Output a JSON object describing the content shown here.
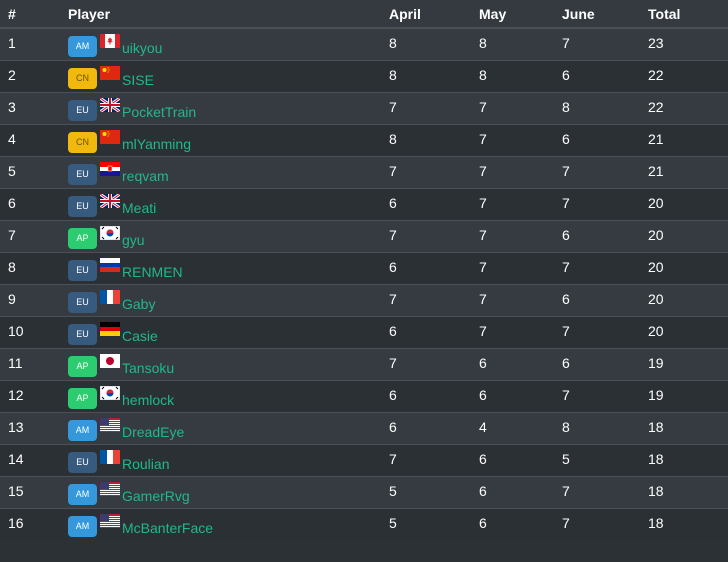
{
  "headers": [
    "#",
    "Player",
    "April",
    "May",
    "June",
    "Total"
  ],
  "region_colors": {
    "AM": "#3498db",
    "CN": "#f1b80d",
    "EU": "#375a7f",
    "AP": "#2ecc71"
  },
  "rows": [
    {
      "rank": "1",
      "region": "AM",
      "flag": "CA",
      "player": "uikyou",
      "april": "8",
      "may": "8",
      "june": "7",
      "total": "23"
    },
    {
      "rank": "2",
      "region": "CN",
      "flag": "CN",
      "player": "SISE",
      "april": "8",
      "may": "8",
      "june": "6",
      "total": "22"
    },
    {
      "rank": "3",
      "region": "EU",
      "flag": "GB",
      "player": "PocketTrain",
      "april": "7",
      "may": "7",
      "june": "8",
      "total": "22"
    },
    {
      "rank": "4",
      "region": "CN",
      "flag": "CN",
      "player": "mlYanming",
      "april": "8",
      "may": "7",
      "june": "6",
      "total": "21"
    },
    {
      "rank": "5",
      "region": "EU",
      "flag": "HR",
      "player": "reqvam",
      "april": "7",
      "may": "7",
      "june": "7",
      "total": "21"
    },
    {
      "rank": "6",
      "region": "EU",
      "flag": "GB",
      "player": "Meati",
      "april": "6",
      "may": "7",
      "june": "7",
      "total": "20"
    },
    {
      "rank": "7",
      "region": "AP",
      "flag": "KR",
      "player": "gyu",
      "april": "7",
      "may": "7",
      "june": "6",
      "total": "20"
    },
    {
      "rank": "8",
      "region": "EU",
      "flag": "RU",
      "player": "RENMEN",
      "april": "6",
      "may": "7",
      "june": "7",
      "total": "20"
    },
    {
      "rank": "9",
      "region": "EU",
      "flag": "FR",
      "player": "Gaby",
      "april": "7",
      "may": "7",
      "june": "6",
      "total": "20"
    },
    {
      "rank": "10",
      "region": "EU",
      "flag": "DE",
      "player": "Casie",
      "april": "6",
      "may": "7",
      "june": "7",
      "total": "20"
    },
    {
      "rank": "11",
      "region": "AP",
      "flag": "JP",
      "player": "Tansoku",
      "april": "7",
      "may": "6",
      "june": "6",
      "total": "19"
    },
    {
      "rank": "12",
      "region": "AP",
      "flag": "KR",
      "player": "hemlock",
      "april": "6",
      "may": "6",
      "june": "7",
      "total": "19"
    },
    {
      "rank": "13",
      "region": "AM",
      "flag": "US",
      "player": "DreadEye",
      "april": "6",
      "may": "4",
      "june": "8",
      "total": "18"
    },
    {
      "rank": "14",
      "region": "EU",
      "flag": "FR",
      "player": "Roulian",
      "april": "7",
      "may": "6",
      "june": "5",
      "total": "18"
    },
    {
      "rank": "15",
      "region": "AM",
      "flag": "US",
      "player": "GamerRvg",
      "april": "5",
      "may": "6",
      "june": "7",
      "total": "18"
    },
    {
      "rank": "16",
      "region": "AM",
      "flag": "US",
      "player": "McBanterFace",
      "april": "5",
      "may": "6",
      "june": "7",
      "total": "18"
    }
  ]
}
